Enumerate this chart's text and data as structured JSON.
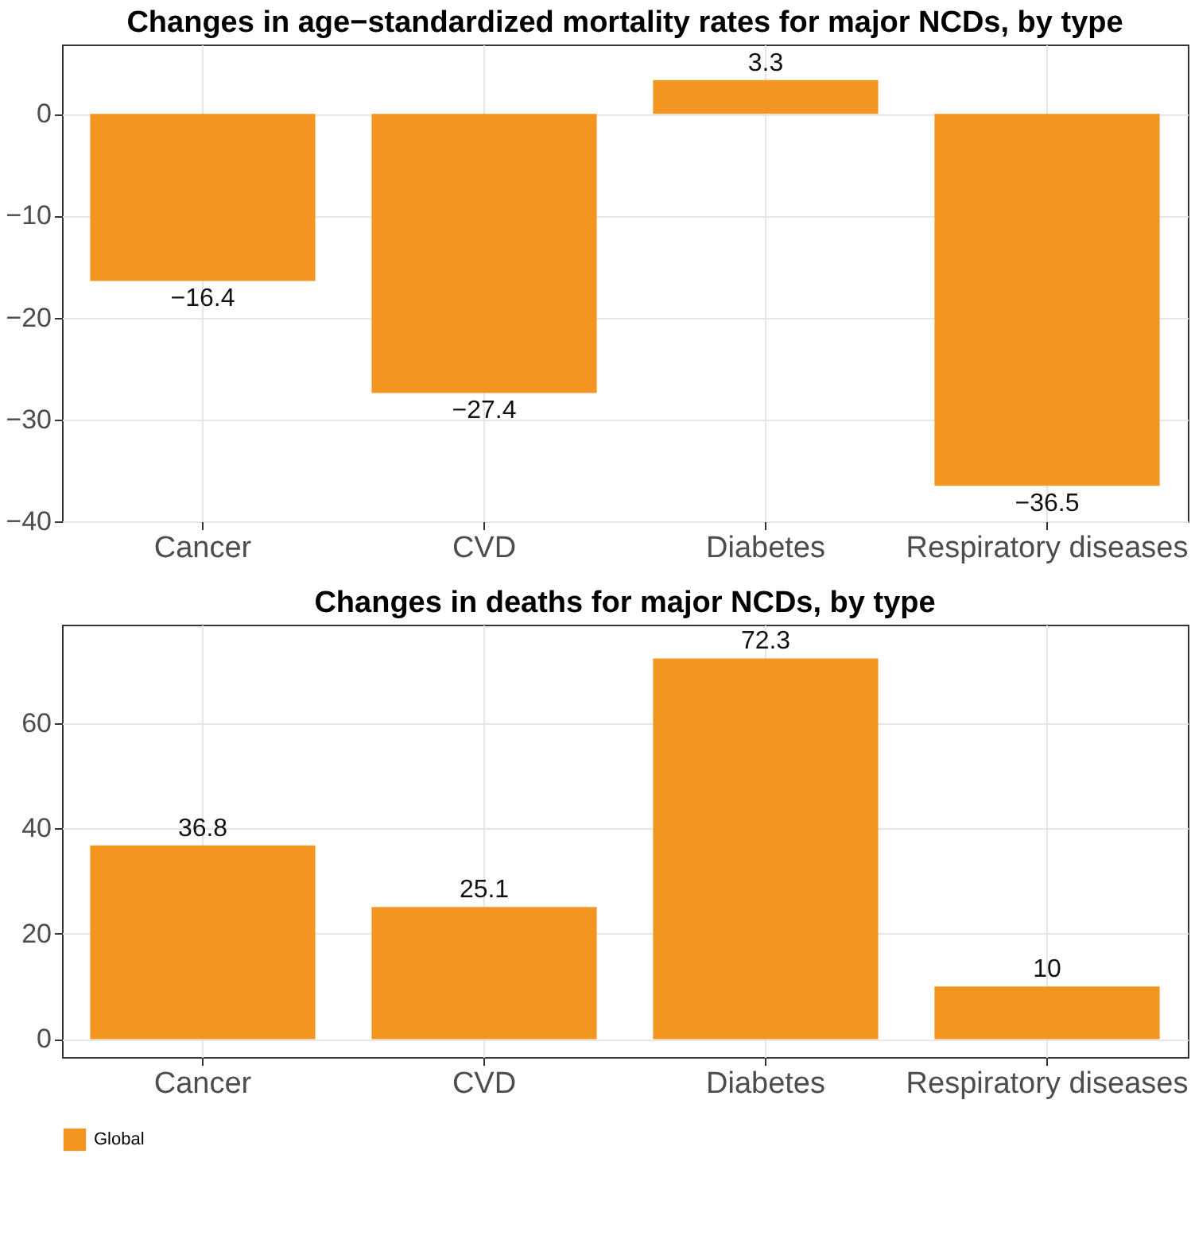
{
  "chart_data": [
    {
      "type": "bar",
      "title": "Changes in age−standardized mortality rates for major NCDs, by type",
      "categories": [
        "Cancer",
        "CVD",
        "Diabetes",
        "Respiratory diseases"
      ],
      "series": [
        {
          "color": "#f39621",
          "values": [
            -16.4,
            -27.4,
            3.3,
            -36.5
          ]
        }
      ],
      "ylim": [
        -40,
        6.8
      ],
      "yticks": [
        {
          "value": -40,
          "label": "−40"
        },
        {
          "value": -30,
          "label": "−30"
        },
        {
          "value": -20,
          "label": "−20"
        },
        {
          "value": -10,
          "label": "−10"
        },
        0
      ],
      "grid": true,
      "data_labels": true
    },
    {
      "type": "bar",
      "title": "Changes in deaths for major NCDs, by type",
      "categories": [
        "Cancer",
        "CVD",
        "Diabetes",
        "Respiratory diseases"
      ],
      "series": [
        {
          "name": "Global",
          "color": "#f39621",
          "values": [
            36.8,
            25.1,
            72.3,
            10
          ]
        }
      ],
      "ylim": [
        -3.4,
        78.7
      ],
      "yticks": [
        0,
        20,
        40,
        60
      ],
      "grid": true,
      "data_labels": true,
      "legend": "bottom"
    }
  ]
}
